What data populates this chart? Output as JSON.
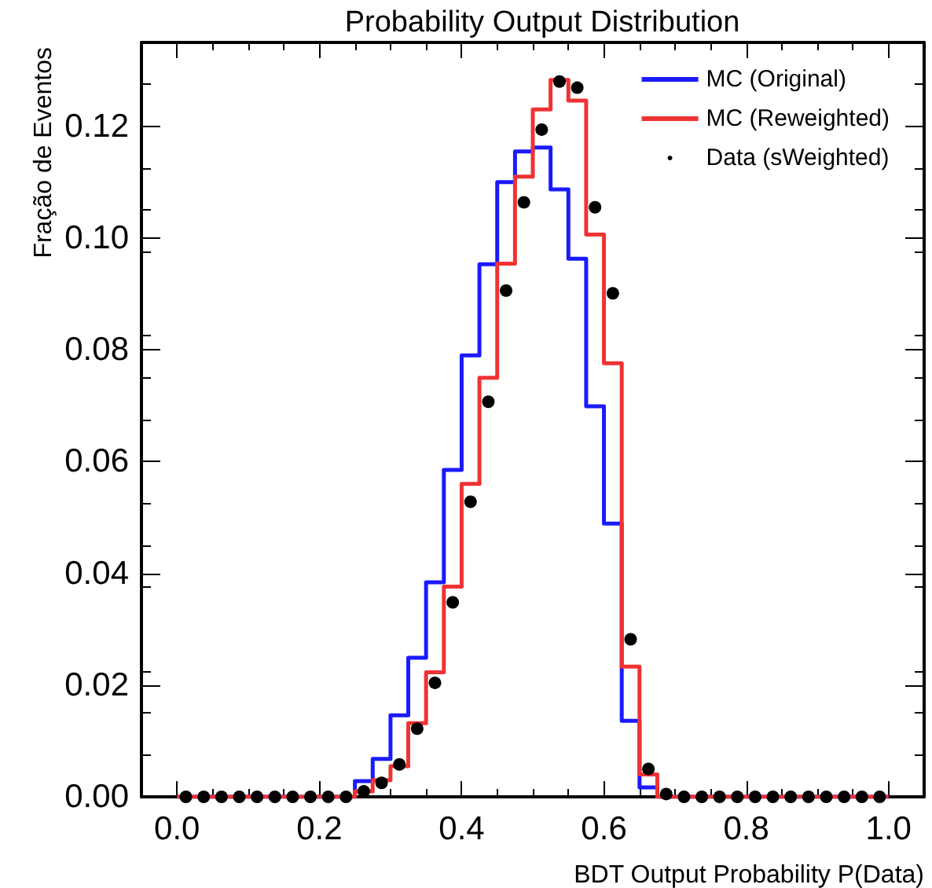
{
  "chart_data": {
    "type": "histogram",
    "title": "Probability Output Distribution",
    "xlabel": "BDT Output Probability P(Data)",
    "ylabel": "Fração de Eventos",
    "bins": [
      0,
      0.025,
      0.05,
      0.075,
      0.1,
      0.125,
      0.15,
      0.175,
      0.2,
      0.225,
      0.25,
      0.275,
      0.3,
      0.325,
      0.35,
      0.375,
      0.4,
      0.425,
      0.45,
      0.475,
      0.5,
      0.525,
      0.55,
      0.575,
      0.6,
      0.625,
      0.65,
      0.675,
      0.7,
      0.725,
      0.75,
      0.775,
      0.8,
      0.825,
      0.85,
      0.875,
      0.9,
      0.925,
      0.95,
      0.975,
      1
    ],
    "series": [
      {
        "name": "MC (Original)",
        "color": "#1a1aff",
        "values": [
          0,
          0,
          0,
          0,
          0,
          0,
          0,
          0,
          0,
          0,
          0.0028,
          0.0068,
          0.0146,
          0.0249,
          0.0384,
          0.0585,
          0.079,
          0.0953,
          0.11,
          0.1155,
          0.1162,
          0.1087,
          0.0963,
          0.0699,
          0.0489,
          0.0136,
          0.0017,
          0,
          0,
          0,
          0,
          0,
          0,
          0,
          0,
          0,
          0,
          0,
          0,
          0
        ]
      },
      {
        "name": "MC (Reweighted)",
        "color": "#ee3333",
        "values": [
          0,
          0,
          0,
          0,
          0,
          0,
          0,
          0,
          0,
          0,
          0.001,
          0.003,
          0.0055,
          0.0132,
          0.0223,
          0.0376,
          0.056,
          0.075,
          0.0954,
          0.111,
          0.123,
          0.1283,
          0.1246,
          0.1006,
          0.0776,
          0.0233,
          0.004,
          0,
          0,
          0,
          0,
          0,
          0,
          0,
          0,
          0,
          0,
          0,
          0,
          0
        ]
      },
      {
        "name": "Data (sWeighted)",
        "type": "scatter",
        "marker": "circle",
        "color": "#000000",
        "x": [
          0.0125,
          0.0375,
          0.0625,
          0.0875,
          0.1125,
          0.1375,
          0.1625,
          0.1875,
          0.2125,
          0.2375,
          0.2625,
          0.2875,
          0.3125,
          0.3375,
          0.3625,
          0.3875,
          0.4125,
          0.4375,
          0.4625,
          0.4875,
          0.5125,
          0.5375,
          0.5625,
          0.5875,
          0.6125,
          0.6375,
          0.6625,
          0.6875,
          0.7125,
          0.7375,
          0.7625,
          0.7875,
          0.8125,
          0.8375,
          0.8625,
          0.8875,
          0.9125,
          0.9375,
          0.9625,
          0.9875
        ],
        "values": [
          0,
          0,
          0,
          0,
          0,
          0,
          0,
          0,
          0,
          0,
          0.001,
          0.0025,
          0.0058,
          0.0122,
          0.0204,
          0.0348,
          0.0528,
          0.0707,
          0.0906,
          0.1064,
          0.1194,
          0.128,
          0.1269,
          0.1055,
          0.0901,
          0.0282,
          0.005,
          0.0005,
          0,
          0,
          0,
          0,
          0,
          0,
          0,
          0,
          0,
          0,
          0,
          0
        ]
      }
    ],
    "xlim": [
      -0.05,
      1.05
    ],
    "xticks": [
      {
        "value": 0,
        "label": "0.0"
      },
      {
        "value": 0.2,
        "label": "0.2"
      },
      {
        "value": 0.4,
        "label": "0.4"
      },
      {
        "value": 0.6,
        "label": "0.6"
      },
      {
        "value": 0.8,
        "label": "0.8"
      },
      {
        "value": 1,
        "label": "1.0"
      }
    ],
    "ylim": [
      0,
      0.135
    ],
    "yticks": [
      {
        "value": 0,
        "label": "0.00"
      },
      {
        "value": 0.02,
        "label": "0.02"
      },
      {
        "value": 0.04,
        "label": "0.04"
      },
      {
        "value": 0.06,
        "label": "0.06"
      },
      {
        "value": 0.08,
        "label": "0.08"
      },
      {
        "value": 0.1,
        "label": "0.10"
      },
      {
        "value": 0.12,
        "label": "0.12"
      }
    ],
    "grid": false,
    "legend": "top right"
  }
}
